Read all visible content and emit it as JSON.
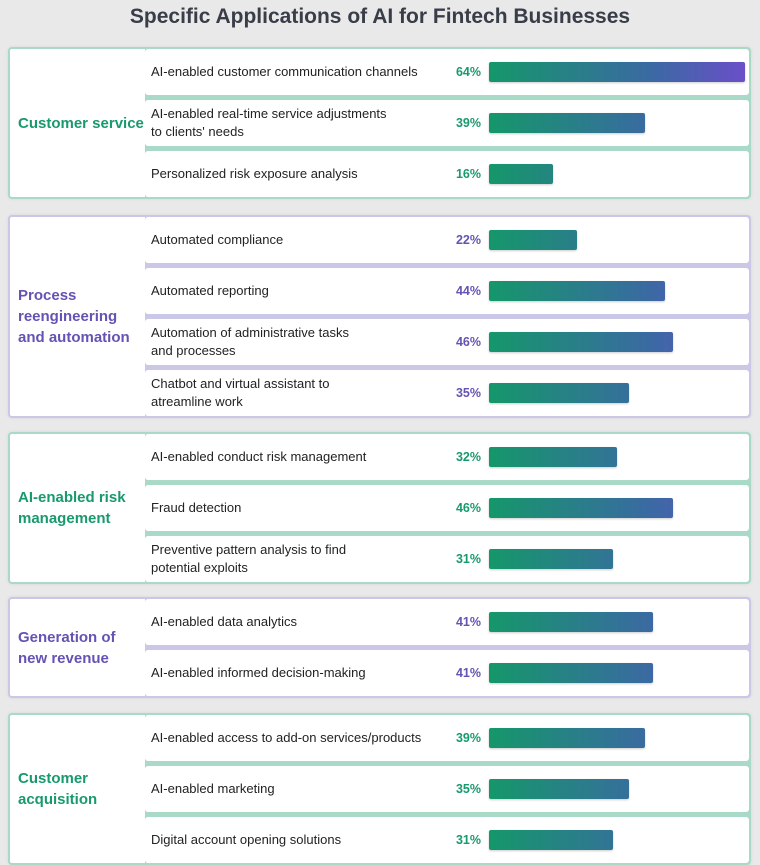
{
  "chart_data": {
    "type": "bar",
    "title": "Specific Applications of AI for Fintech Businesses",
    "unit": "%",
    "xlim": [
      0,
      64
    ],
    "colors": {
      "green": "#18996e",
      "purple": "#6652b3",
      "bar_start": "#15976a",
      "bar_end": "#6a4fc8"
    },
    "groups": [
      {
        "name": "Customer service",
        "theme": "green",
        "items": [
          {
            "label": "AI-enabled customer communication channels",
            "value": 64
          },
          {
            "label": "AI-enabled real-time service adjustments\nto clients' needs",
            "value": 39
          },
          {
            "label": "Personalized risk exposure analysis",
            "value": 16
          }
        ]
      },
      {
        "name": "Process reengineering and automation",
        "theme": "purple",
        "items": [
          {
            "label": "Automated compliance",
            "value": 22
          },
          {
            "label": "Automated reporting",
            "value": 44
          },
          {
            "label": "Automation of administrative tasks\nand processes",
            "value": 46
          },
          {
            "label": "Chatbot and virtual assistant to\natreamline work",
            "value": 35
          }
        ]
      },
      {
        "name": "AI-enabled risk management",
        "theme": "green",
        "items": [
          {
            "label": "AI-enabled conduct risk management",
            "value": 32
          },
          {
            "label": "Fraud detection",
            "value": 46
          },
          {
            "label": "Preventive pattern analysis to find\npotential exploits",
            "value": 31
          }
        ]
      },
      {
        "name": "Generation of new revenue",
        "theme": "purple",
        "items": [
          {
            "label": "AI-enabled data analytics",
            "value": 41
          },
          {
            "label": "AI-enabled informed decision-making",
            "value": 41
          }
        ]
      },
      {
        "name": "Customer acquisition",
        "theme": "green",
        "items": [
          {
            "label": "AI-enabled access to add-on services/products",
            "value": 39
          },
          {
            "label": "AI-enabled marketing",
            "value": 35
          },
          {
            "label": "Digital account opening solutions",
            "value": 31
          }
        ]
      }
    ]
  }
}
